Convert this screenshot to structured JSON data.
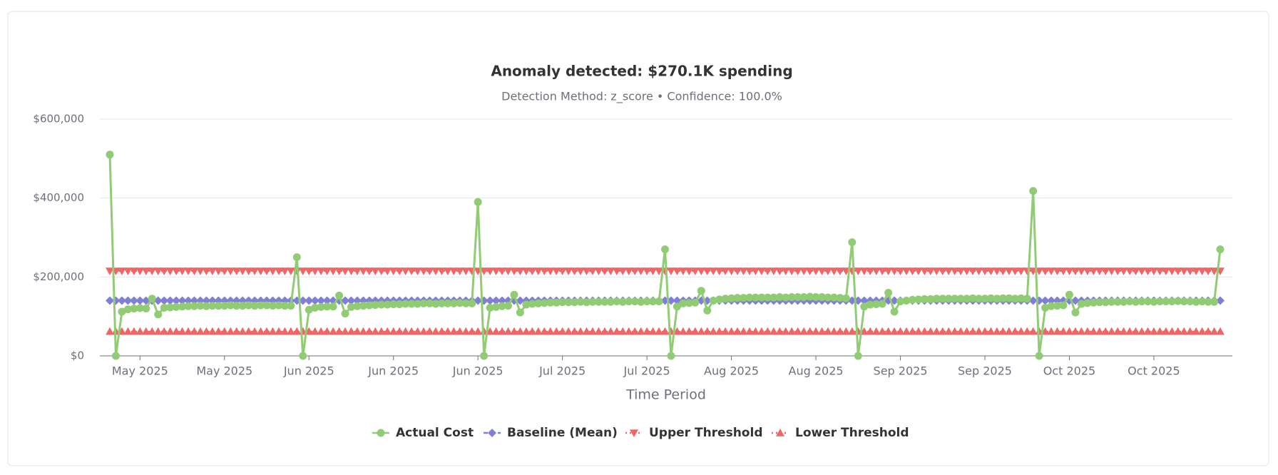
{
  "chart_data": {
    "type": "line",
    "title": "Anomaly detected: $270.1K spending",
    "subtitle": "Detection Method: z_score • Confidence: 100.0%",
    "x_label": "Time Period",
    "categories": [
      null,
      null,
      null,
      null,
      null,
      "May 2025",
      null,
      null,
      null,
      null,
      null,
      null,
      null,
      null,
      null,
      null,
      null,
      null,
      null,
      "May 2025",
      null,
      null,
      null,
      null,
      null,
      null,
      null,
      null,
      null,
      null,
      null,
      null,
      null,
      "Jun 2025",
      null,
      null,
      null,
      null,
      null,
      null,
      null,
      null,
      null,
      null,
      null,
      null,
      null,
      "Jun 2025",
      null,
      null,
      null,
      null,
      null,
      null,
      null,
      null,
      null,
      null,
      null,
      null,
      null,
      "Jun 2025",
      null,
      null,
      null,
      null,
      null,
      null,
      null,
      null,
      null,
      null,
      null,
      null,
      null,
      "Jul 2025",
      null,
      null,
      null,
      null,
      null,
      null,
      null,
      null,
      null,
      null,
      null,
      null,
      null,
      "Jul 2025",
      null,
      null,
      null,
      null,
      null,
      null,
      null,
      null,
      null,
      null,
      null,
      null,
      null,
      "Aug 2025",
      null,
      null,
      null,
      null,
      null,
      null,
      null,
      null,
      null,
      null,
      null,
      null,
      null,
      "Aug 2025",
      null,
      null,
      null,
      null,
      null,
      null,
      null,
      null,
      null,
      null,
      null,
      null,
      null,
      "Sep 2025",
      null,
      null,
      null,
      null,
      null,
      null,
      null,
      null,
      null,
      null,
      null,
      null,
      null,
      "Sep 2025",
      null,
      null,
      null,
      null,
      null,
      null,
      null,
      null,
      null,
      null,
      null,
      null,
      null,
      "Oct 2025",
      null,
      null,
      null,
      null,
      null,
      null,
      null,
      null,
      null,
      null,
      null,
      null,
      null,
      "Oct 2025",
      null,
      null,
      null,
      null,
      null,
      null,
      null,
      null,
      null,
      null,
      null
    ],
    "ylim": [
      0,
      600000
    ],
    "yticks": [
      {
        "value": 0,
        "label": "$0"
      },
      {
        "value": 200000,
        "label": "$200,000"
      },
      {
        "value": 400000,
        "label": "$400,000"
      },
      {
        "value": 600000,
        "label": "$600,000"
      }
    ],
    "grid": true,
    "legend": "bottom",
    "series": [
      {
        "name": "Actual Cost",
        "color": "#91cc75",
        "symbol": "circle",
        "line_style": "solid",
        "values": [
          510000,
          0,
          112000,
          118000,
          120000,
          121000,
          120000,
          145000,
          105000,
          122000,
          123000,
          124000,
          125000,
          126000,
          126000,
          127000,
          126000,
          127000,
          127000,
          127000,
          128000,
          127000,
          127000,
          128000,
          127000,
          128000,
          128000,
          127000,
          128000,
          127000,
          127000,
          250000,
          0,
          117000,
          122000,
          124000,
          125000,
          125000,
          153000,
          107000,
          124000,
          126000,
          127000,
          128000,
          129000,
          130000,
          130000,
          131000,
          131000,
          132000,
          132000,
          132000,
          133000,
          133000,
          132000,
          133000,
          133000,
          133000,
          134000,
          133000,
          133000,
          390000,
          0,
          122000,
          124000,
          126000,
          127000,
          155000,
          110000,
          130000,
          132000,
          133000,
          134000,
          135000,
          135000,
          136000,
          136000,
          136000,
          137000,
          136000,
          137000,
          137000,
          137000,
          137000,
          138000,
          137000,
          138000,
          138000,
          137000,
          138000,
          138000,
          138000,
          270000,
          0,
          125000,
          133000,
          134000,
          135000,
          165000,
          115000,
          140000,
          143000,
          145000,
          146000,
          147000,
          147000,
          148000,
          148000,
          148000,
          148000,
          148000,
          149000,
          148000,
          149000,
          149000,
          149000,
          150000,
          149000,
          149000,
          148000,
          148000,
          147000,
          146000,
          288000,
          0,
          125000,
          130000,
          131000,
          132000,
          160000,
          112000,
          138000,
          140000,
          142000,
          143000,
          144000,
          144000,
          145000,
          145000,
          145000,
          145000,
          145000,
          145000,
          146000,
          145000,
          145000,
          146000,
          145000,
          146000,
          146000,
          145000,
          146000,
          145000,
          418000,
          0,
          122000,
          126000,
          127000,
          128000,
          155000,
          110000,
          132000,
          134000,
          135000,
          136000,
          136000,
          137000,
          137000,
          137000,
          138000,
          137000,
          138000,
          138000,
          137000,
          138000,
          138000,
          138000,
          139000,
          138000,
          138000,
          137000,
          138000,
          137000,
          137000,
          270000
        ]
      },
      {
        "name": "Baseline (Mean)",
        "color": "#7f7fd6",
        "symbol": "diamond",
        "line_style": "dashed",
        "values": [
          140000,
          140000,
          140000,
          140000,
          140000,
          140000,
          140000,
          140000,
          140000,
          140000,
          140000,
          140000,
          140000,
          140000,
          140000,
          140000,
          140000,
          140000,
          140000,
          140000,
          140000,
          140000,
          140000,
          140000,
          140000,
          140000,
          140000,
          140000,
          140000,
          140000,
          140000,
          140000,
          140000,
          140000,
          140000,
          140000,
          140000,
          140000,
          140000,
          140000,
          140000,
          140000,
          140000,
          140000,
          140000,
          140000,
          140000,
          140000,
          140000,
          140000,
          140000,
          140000,
          140000,
          140000,
          140000,
          140000,
          140000,
          140000,
          140000,
          140000,
          140000,
          140000,
          140000,
          140000,
          140000,
          140000,
          140000,
          140000,
          140000,
          140000,
          140000,
          140000,
          140000,
          140000,
          140000,
          140000,
          140000,
          140000,
          140000,
          140000,
          140000,
          140000,
          140000,
          140000,
          140000,
          140000,
          140000,
          140000,
          140000,
          140000,
          140000,
          140000,
          140000,
          140000,
          140000,
          140000,
          140000,
          140000,
          140000,
          140000,
          140000,
          140000,
          140000,
          140000,
          140000,
          140000,
          140000,
          140000,
          140000,
          140000,
          140000,
          140000,
          140000,
          140000,
          140000,
          140000,
          140000,
          140000,
          140000,
          140000,
          140000,
          140000,
          140000,
          140000,
          140000,
          140000,
          140000,
          140000,
          140000,
          140000,
          140000,
          140000,
          140000,
          140000,
          140000,
          140000,
          140000,
          140000,
          140000,
          140000,
          140000,
          140000,
          140000,
          140000,
          140000,
          140000,
          140000,
          140000,
          140000,
          140000,
          140000,
          140000,
          140000,
          140000,
          140000,
          140000,
          140000,
          140000,
          140000,
          140000,
          140000,
          140000,
          140000,
          140000,
          140000,
          140000,
          140000,
          140000,
          140000,
          140000,
          140000,
          140000,
          140000,
          140000,
          140000,
          140000,
          140000,
          140000,
          140000,
          140000,
          140000,
          140000,
          140000,
          140000,
          140000
        ]
      },
      {
        "name": "Upper Threshold",
        "color": "#ee6666",
        "symbol": "triangle-down",
        "line_style": "dotted",
        "values": [
          215000,
          215000,
          215000,
          215000,
          215000,
          215000,
          215000,
          215000,
          215000,
          215000,
          215000,
          215000,
          215000,
          215000,
          215000,
          215000,
          215000,
          215000,
          215000,
          215000,
          215000,
          215000,
          215000,
          215000,
          215000,
          215000,
          215000,
          215000,
          215000,
          215000,
          215000,
          215000,
          215000,
          215000,
          215000,
          215000,
          215000,
          215000,
          215000,
          215000,
          215000,
          215000,
          215000,
          215000,
          215000,
          215000,
          215000,
          215000,
          215000,
          215000,
          215000,
          215000,
          215000,
          215000,
          215000,
          215000,
          215000,
          215000,
          215000,
          215000,
          215000,
          215000,
          215000,
          215000,
          215000,
          215000,
          215000,
          215000,
          215000,
          215000,
          215000,
          215000,
          215000,
          215000,
          215000,
          215000,
          215000,
          215000,
          215000,
          215000,
          215000,
          215000,
          215000,
          215000,
          215000,
          215000,
          215000,
          215000,
          215000,
          215000,
          215000,
          215000,
          215000,
          215000,
          215000,
          215000,
          215000,
          215000,
          215000,
          215000,
          215000,
          215000,
          215000,
          215000,
          215000,
          215000,
          215000,
          215000,
          215000,
          215000,
          215000,
          215000,
          215000,
          215000,
          215000,
          215000,
          215000,
          215000,
          215000,
          215000,
          215000,
          215000,
          215000,
          215000,
          215000,
          215000,
          215000,
          215000,
          215000,
          215000,
          215000,
          215000,
          215000,
          215000,
          215000,
          215000,
          215000,
          215000,
          215000,
          215000,
          215000,
          215000,
          215000,
          215000,
          215000,
          215000,
          215000,
          215000,
          215000,
          215000,
          215000,
          215000,
          215000,
          215000,
          215000,
          215000,
          215000,
          215000,
          215000,
          215000,
          215000,
          215000,
          215000,
          215000,
          215000,
          215000,
          215000,
          215000,
          215000,
          215000,
          215000,
          215000,
          215000,
          215000,
          215000,
          215000,
          215000,
          215000,
          215000,
          215000,
          215000,
          215000,
          215000,
          215000,
          215000
        ]
      },
      {
        "name": "Lower Threshold",
        "color": "#ee6666",
        "symbol": "triangle",
        "line_style": "dotted",
        "values": [
          62000,
          62000,
          62000,
          62000,
          62000,
          62000,
          62000,
          62000,
          62000,
          62000,
          62000,
          62000,
          62000,
          62000,
          62000,
          62000,
          62000,
          62000,
          62000,
          62000,
          62000,
          62000,
          62000,
          62000,
          62000,
          62000,
          62000,
          62000,
          62000,
          62000,
          62000,
          62000,
          62000,
          62000,
          62000,
          62000,
          62000,
          62000,
          62000,
          62000,
          62000,
          62000,
          62000,
          62000,
          62000,
          62000,
          62000,
          62000,
          62000,
          62000,
          62000,
          62000,
          62000,
          62000,
          62000,
          62000,
          62000,
          62000,
          62000,
          62000,
          62000,
          62000,
          62000,
          62000,
          62000,
          62000,
          62000,
          62000,
          62000,
          62000,
          62000,
          62000,
          62000,
          62000,
          62000,
          62000,
          62000,
          62000,
          62000,
          62000,
          62000,
          62000,
          62000,
          62000,
          62000,
          62000,
          62000,
          62000,
          62000,
          62000,
          62000,
          62000,
          62000,
          62000,
          62000,
          62000,
          62000,
          62000,
          62000,
          62000,
          62000,
          62000,
          62000,
          62000,
          62000,
          62000,
          62000,
          62000,
          62000,
          62000,
          62000,
          62000,
          62000,
          62000,
          62000,
          62000,
          62000,
          62000,
          62000,
          62000,
          62000,
          62000,
          62000,
          62000,
          62000,
          62000,
          62000,
          62000,
          62000,
          62000,
          62000,
          62000,
          62000,
          62000,
          62000,
          62000,
          62000,
          62000,
          62000,
          62000,
          62000,
          62000,
          62000,
          62000,
          62000,
          62000,
          62000,
          62000,
          62000,
          62000,
          62000,
          62000,
          62000,
          62000,
          62000,
          62000,
          62000,
          62000,
          62000,
          62000,
          62000,
          62000,
          62000,
          62000,
          62000,
          62000,
          62000,
          62000,
          62000,
          62000,
          62000,
          62000,
          62000,
          62000,
          62000,
          62000,
          62000,
          62000,
          62000,
          62000,
          62000,
          62000,
          62000,
          62000,
          62000
        ]
      }
    ]
  }
}
